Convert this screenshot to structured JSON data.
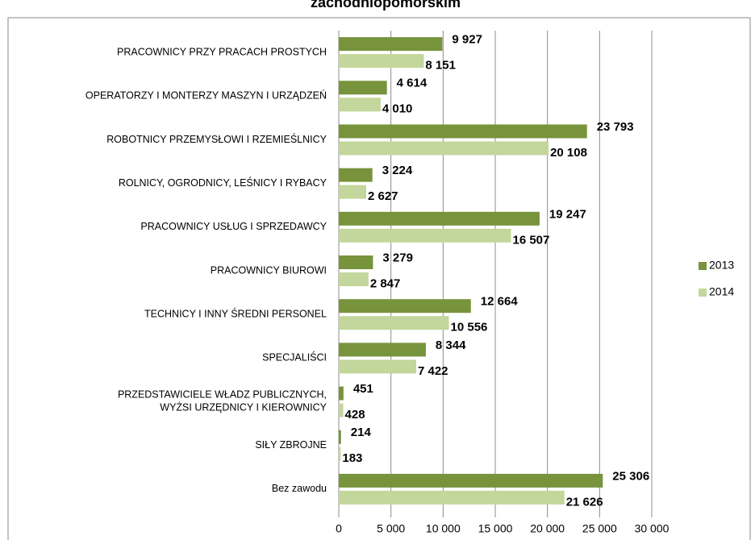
{
  "chart_data": {
    "type": "bar",
    "orientation": "horizontal",
    "title": "zachodniopomorskim",
    "categories": [
      "PRACOWNICY PRZY PRACACH PROSTYCH",
      "OPERATORZY I MONTERZY MASZYN I URZĄDZEŃ",
      "ROBOTNICY PRZEMYSŁOWI I RZEMIEŚLNICY",
      "ROLNICY, OGRODNICY, LEŚNICY I RYBACY",
      "PRACOWNICY USŁUG I SPRZEDAWCY",
      "PRACOWNICY BIUROWI",
      "TECHNICY I INNY ŚREDNI PERSONEL",
      "SPECJALIŚCI",
      "PRZEDSTAWICIELE WŁADZ PUBLICZNYCH, WYŻSI URZĘDNICY I KIEROWNICY",
      "SIŁY ZBROJNE",
      "Bez zawodu"
    ],
    "series": [
      {
        "name": "2013",
        "color": "#77933c",
        "values": [
          9927,
          4614,
          23793,
          3224,
          19247,
          3279,
          12664,
          8344,
          451,
          214,
          25306
        ],
        "value_labels": [
          "9 927",
          "4 614",
          "23 793",
          "3 224",
          "19 247",
          "3 279",
          "12 664",
          "8 344",
          "451",
          "214",
          "25 306"
        ]
      },
      {
        "name": "2014",
        "color": "#c3d69b",
        "values": [
          8151,
          4010,
          20108,
          2627,
          16507,
          2847,
          10556,
          7422,
          428,
          183,
          21626
        ],
        "value_labels": [
          "8 151",
          "4 010",
          "20 108",
          "2 627",
          "16 507",
          "2 847",
          "10 556",
          "7 422",
          "428",
          "183",
          "21 626"
        ]
      }
    ],
    "xlim": [
      0,
      30000
    ],
    "xticks": [
      0,
      {
        "value": 5000,
        "label": "5 000"
      },
      {
        "value": 10000,
        "label": "10 000"
      },
      {
        "value": 15000,
        "label": "15 000"
      },
      {
        "value": 20000,
        "label": "20 000"
      },
      {
        "value": 25000,
        "label": "25 000"
      },
      {
        "value": 30000,
        "label": "30 000"
      }
    ],
    "grid": true,
    "legend": "right"
  }
}
